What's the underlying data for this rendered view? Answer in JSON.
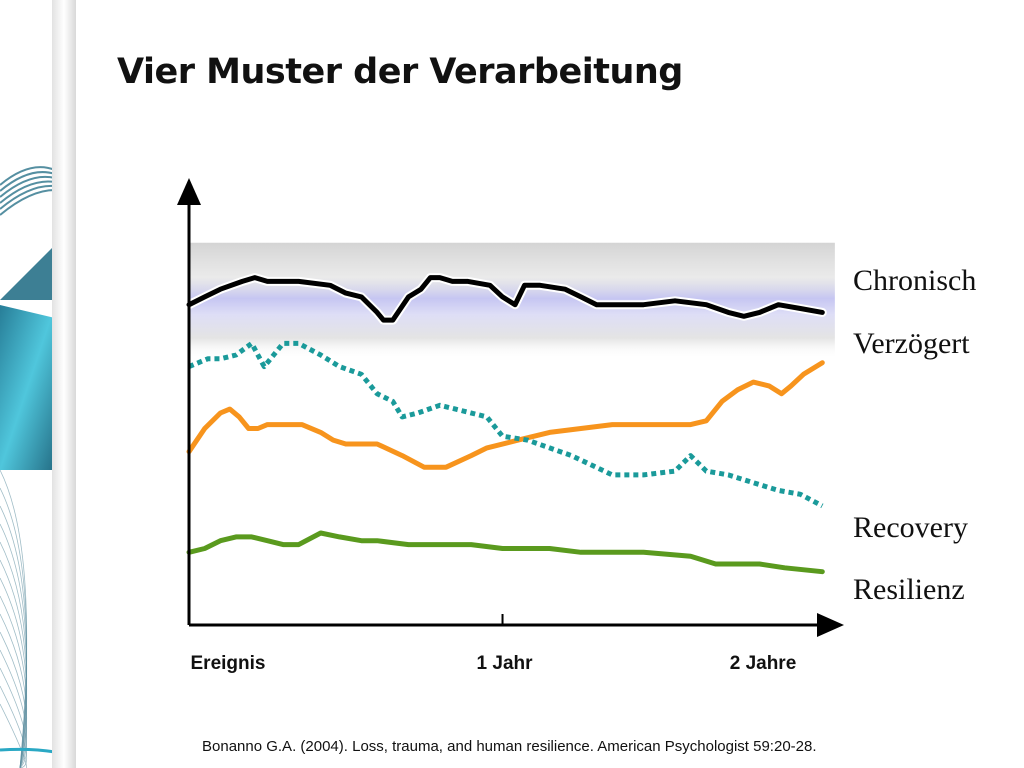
{
  "slide": {
    "title": "Vier Muster der Verarbeitung",
    "citation": "Bonanno G.A. (2004). Loss, trauma, and human resilience. American Psychologist 59:20-28."
  },
  "chart_data": {
    "type": "line",
    "title": "Vier Muster der Verarbeitung",
    "xlabel": "",
    "ylabel": "",
    "x_ticks": [
      "Ereignis",
      "1 Jahr",
      "2 Jahre"
    ],
    "x_tick_values": [
      0,
      1,
      2
    ],
    "xlim": [
      0,
      2.07
    ],
    "ylim": [
      0,
      100
    ],
    "grid": false,
    "legend": "right",
    "background_band": {
      "from": 68,
      "to": 98
    },
    "series": [
      {
        "name": "Chronisch",
        "color": "#000000",
        "style": "solid",
        "points": [
          [
            0,
            82
          ],
          [
            0.05,
            84
          ],
          [
            0.1,
            86
          ],
          [
            0.17,
            88
          ],
          [
            0.21,
            89
          ],
          [
            0.25,
            88
          ],
          [
            0.35,
            88
          ],
          [
            0.45,
            87
          ],
          [
            0.5,
            85
          ],
          [
            0.55,
            84
          ],
          [
            0.6,
            80
          ],
          [
            0.62,
            78
          ],
          [
            0.65,
            78
          ],
          [
            0.7,
            84
          ],
          [
            0.74,
            86
          ],
          [
            0.77,
            89
          ],
          [
            0.8,
            89
          ],
          [
            0.84,
            88
          ],
          [
            0.89,
            88
          ],
          [
            0.96,
            87
          ],
          [
            1.0,
            84
          ],
          [
            1.04,
            82
          ],
          [
            1.07,
            87
          ],
          [
            1.12,
            87
          ],
          [
            1.2,
            86
          ],
          [
            1.25,
            84
          ],
          [
            1.3,
            82
          ],
          [
            1.35,
            82
          ],
          [
            1.45,
            82
          ],
          [
            1.55,
            83
          ],
          [
            1.65,
            82
          ],
          [
            1.72,
            80
          ],
          [
            1.77,
            79
          ],
          [
            1.82,
            80
          ],
          [
            1.88,
            82
          ],
          [
            1.95,
            81
          ],
          [
            2.02,
            80
          ]
        ]
      },
      {
        "name": "Verzögert",
        "color": "#f7941d",
        "style": "solid",
        "points": [
          [
            0,
            44
          ],
          [
            0.05,
            50
          ],
          [
            0.1,
            54
          ],
          [
            0.13,
            55
          ],
          [
            0.16,
            53
          ],
          [
            0.19,
            50
          ],
          [
            0.22,
            50
          ],
          [
            0.25,
            51
          ],
          [
            0.3,
            51
          ],
          [
            0.36,
            51
          ],
          [
            0.42,
            49
          ],
          [
            0.46,
            47
          ],
          [
            0.5,
            46
          ],
          [
            0.55,
            46
          ],
          [
            0.6,
            46
          ],
          [
            0.68,
            43
          ],
          [
            0.75,
            40
          ],
          [
            0.82,
            40
          ],
          [
            0.9,
            43
          ],
          [
            0.95,
            45
          ],
          [
            1.05,
            47
          ],
          [
            1.15,
            49
          ],
          [
            1.25,
            50
          ],
          [
            1.35,
            51
          ],
          [
            1.45,
            51
          ],
          [
            1.6,
            51
          ],
          [
            1.65,
            52
          ],
          [
            1.7,
            57
          ],
          [
            1.75,
            60
          ],
          [
            1.8,
            62
          ],
          [
            1.85,
            61
          ],
          [
            1.89,
            59
          ],
          [
            1.92,
            61
          ],
          [
            1.96,
            64
          ],
          [
            2.02,
            67
          ]
        ]
      },
      {
        "name": "Recovery",
        "color": "#1a9a9a",
        "style": "dotted",
        "points": [
          [
            0,
            66
          ],
          [
            0.06,
            68
          ],
          [
            0.1,
            68
          ],
          [
            0.15,
            69
          ],
          [
            0.2,
            72
          ],
          [
            0.24,
            66
          ],
          [
            0.3,
            72
          ],
          [
            0.35,
            72
          ],
          [
            0.42,
            69
          ],
          [
            0.48,
            66
          ],
          [
            0.55,
            64
          ],
          [
            0.6,
            59
          ],
          [
            0.65,
            57
          ],
          [
            0.68,
            53
          ],
          [
            0.73,
            54
          ],
          [
            0.8,
            56
          ],
          [
            0.85,
            55
          ],
          [
            0.95,
            53
          ],
          [
            1.0,
            48
          ],
          [
            1.08,
            47
          ],
          [
            1.15,
            45
          ],
          [
            1.22,
            43
          ],
          [
            1.35,
            38
          ],
          [
            1.45,
            38
          ],
          [
            1.55,
            39
          ],
          [
            1.6,
            43
          ],
          [
            1.65,
            39
          ],
          [
            1.72,
            38
          ],
          [
            1.8,
            36
          ],
          [
            1.88,
            34
          ],
          [
            1.95,
            33
          ],
          [
            2.02,
            30
          ]
        ]
      },
      {
        "name": "Resilienz",
        "color": "#5a9a1e",
        "style": "solid",
        "points": [
          [
            0,
            18
          ],
          [
            0.05,
            19
          ],
          [
            0.1,
            21
          ],
          [
            0.15,
            22
          ],
          [
            0.2,
            22
          ],
          [
            0.25,
            21
          ],
          [
            0.3,
            20
          ],
          [
            0.35,
            20
          ],
          [
            0.42,
            23
          ],
          [
            0.48,
            22
          ],
          [
            0.55,
            21
          ],
          [
            0.6,
            21
          ],
          [
            0.7,
            20
          ],
          [
            0.8,
            20
          ],
          [
            0.9,
            20
          ],
          [
            1.0,
            19
          ],
          [
            1.15,
            19
          ],
          [
            1.25,
            18
          ],
          [
            1.35,
            18
          ],
          [
            1.45,
            18
          ],
          [
            1.6,
            17
          ],
          [
            1.68,
            15
          ],
          [
            1.75,
            15
          ],
          [
            1.82,
            15
          ],
          [
            1.9,
            14
          ],
          [
            2.02,
            13
          ]
        ]
      }
    ]
  },
  "colors": {
    "band_gray": "#cfcfcf",
    "band_lavender": "#c6c6f2",
    "axis": "#000000",
    "deco_teal": "#2aa8c4"
  }
}
